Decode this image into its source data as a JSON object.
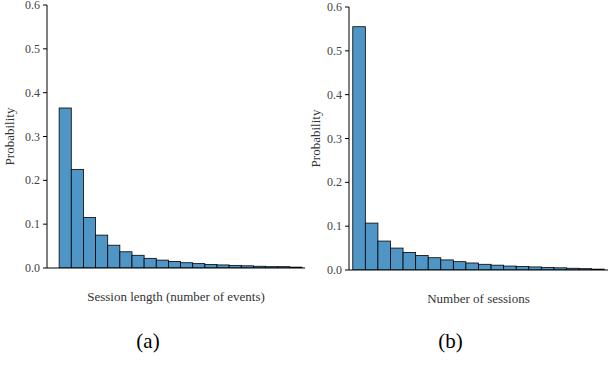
{
  "chart_data": [
    {
      "type": "histogram",
      "xlabel": "Session length (number of events)",
      "ylabel": "Probability",
      "caption": "(a)",
      "bins": [
        1,
        2,
        3,
        4,
        5,
        6,
        7,
        8,
        9,
        10,
        11,
        12,
        13,
        14,
        15,
        16,
        17,
        18,
        19,
        20,
        21
      ],
      "values": [
        0.365,
        0.225,
        0.115,
        0.075,
        0.052,
        0.037,
        0.029,
        0.022,
        0.018,
        0.015,
        0.012,
        0.01,
        0.008,
        0.007,
        0.006,
        0.005,
        0.004,
        0.003,
        0.003,
        0.002
      ],
      "color": "#4f95c6",
      "xlim": [
        0,
        21.25
      ],
      "ylim": [
        0,
        0.6
      ],
      "yticks": [
        {
          "value": 0,
          "label": "0.0"
        },
        0.1,
        0.2,
        0.3,
        0.4,
        0.5,
        0.6
      ],
      "tick_labels": "y"
    },
    {
      "type": "histogram",
      "xlabel": "Number of sessions",
      "ylabel": "Probability",
      "caption": "(b)",
      "bins": [
        1,
        2,
        3,
        4,
        5,
        6,
        7,
        8,
        9,
        10,
        11,
        12,
        13,
        14,
        15,
        16,
        17,
        18,
        19,
        20,
        21
      ],
      "values": [
        0.555,
        0.107,
        0.066,
        0.05,
        0.04,
        0.033,
        0.028,
        0.023,
        0.019,
        0.016,
        0.013,
        0.011,
        0.009,
        0.008,
        0.007,
        0.006,
        0.005,
        0.004,
        0.003,
        0.002
      ],
      "color": "#4f95c6",
      "xlim": [
        0.7,
        21.3
      ],
      "ylim": [
        0,
        0.6
      ],
      "yticks": [
        {
          "value": 0,
          "label": "0.0"
        },
        0.1,
        0.2,
        0.3,
        0.4,
        0.5,
        0.6
      ],
      "tick_labels": "y"
    }
  ]
}
